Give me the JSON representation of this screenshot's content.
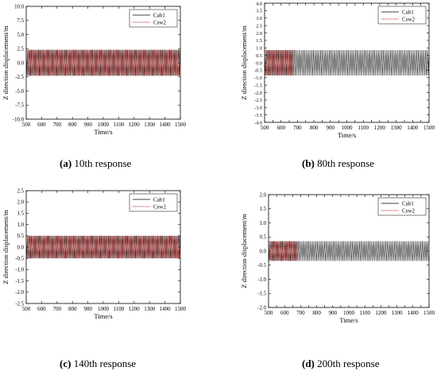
{
  "chart_data": [
    {
      "type": "line",
      "caption_label": "(a)",
      "caption_text": " 10th response",
      "xlabel": "Time/s",
      "ylabel": "Z direction displacement/m",
      "xlim": [
        500,
        1500
      ],
      "ylim": [
        -10.0,
        10.0
      ],
      "xticks": [
        "500",
        "600",
        "700",
        "800",
        "900",
        "1000",
        "1100",
        "1200",
        "1300",
        "1400",
        "1500"
      ],
      "yticks": [
        "10.0",
        "7.5",
        "5.0",
        "2.5",
        "0.0",
        "-2.5",
        "-5.0",
        "-7.5",
        "-10.0"
      ],
      "series": [
        {
          "name": "Cab1",
          "color": "#000000",
          "style": "solid",
          "amplitude": 2.3,
          "x_start": 500,
          "x_end": 1500
        },
        {
          "name": "Csw2",
          "color": "#cc0000",
          "style": "dotted",
          "amplitude": 2.3,
          "x_start": 500,
          "x_end": 1500
        }
      ],
      "legend": "top-right",
      "grid": false
    },
    {
      "type": "line",
      "caption_label": "(b)",
      "caption_text": " 80th response",
      "xlabel": "Time/s",
      "ylabel": "Z direction displacement/m",
      "xlim": [
        500,
        1500
      ],
      "ylim": [
        -4.0,
        4.0
      ],
      "xticks": [
        "500",
        "550",
        "600",
        "650",
        "700",
        "750",
        "800",
        "850",
        "900",
        "950",
        "1000",
        "1050",
        "1100",
        "1150",
        "1200",
        "1250",
        "1300",
        "1350",
        "1400",
        "1450",
        "1500"
      ],
      "yticks": [
        "4.0",
        "3.5",
        "3.0",
        "2.5",
        "2.0",
        "1.5",
        "1.0",
        "0.5",
        "0.0",
        "-0.5",
        "-1.0",
        "-1.5",
        "-2.0",
        "-2.5",
        "-3.0",
        "-3.5",
        "-4.0"
      ],
      "series": [
        {
          "name": "Cab1",
          "color": "#000000",
          "style": "solid",
          "amplitude": 0.85,
          "x_start": 500,
          "x_end": 1500
        },
        {
          "name": "Csw2",
          "color": "#cc0000",
          "style": "dotted",
          "amplitude": 0.85,
          "x_start": 500,
          "x_end": 680
        }
      ],
      "legend": "top-right",
      "grid": false
    },
    {
      "type": "line",
      "caption_label": "(c)",
      "caption_text": " 140th response",
      "xlabel": "Time/s",
      "ylabel": "Z direction displacement/m",
      "xlim": [
        500,
        1500
      ],
      "ylim": [
        -2.5,
        2.5
      ],
      "xticks": [
        "500",
        "600",
        "700",
        "800",
        "900",
        "1000",
        "1100",
        "1200",
        "1300",
        "1400",
        "1500"
      ],
      "yticks": [
        "2.5",
        "2.0",
        "1.5",
        "1.0",
        "0.5",
        "0.0",
        "-0.5",
        "-1.0",
        "-1.5",
        "-2.0",
        "-2.5"
      ],
      "series": [
        {
          "name": "Cab1",
          "color": "#000000",
          "style": "solid",
          "amplitude": 0.5,
          "x_start": 500,
          "x_end": 1500
        },
        {
          "name": "Csw2",
          "color": "#cc0000",
          "style": "dotted",
          "amplitude": 0.5,
          "x_start": 500,
          "x_end": 1500
        }
      ],
      "legend": "top-right",
      "grid": false
    },
    {
      "type": "line",
      "caption_label": "(d)",
      "caption_text": " 200th response",
      "xlabel": "Time/s",
      "ylabel": "Z direction displacement/m",
      "xlim": [
        500,
        1500
      ],
      "ylim": [
        -2.0,
        2.0
      ],
      "xticks": [
        "500",
        "550",
        "600",
        "650",
        "700",
        "750",
        "800",
        "850",
        "900",
        "950",
        "1000",
        "1050",
        "1100",
        "1150",
        "1200",
        "1250",
        "1300",
        "1350",
        "1400",
        "1450",
        "1500"
      ],
      "yticks": [
        "2.0",
        "1.5",
        "1.0",
        "0.5",
        "0.0",
        "-0.5",
        "-1.0",
        "-1.5",
        "-2.0"
      ],
      "series": [
        {
          "name": "Cab1",
          "color": "#000000",
          "style": "solid",
          "amplitude": 0.35,
          "x_start": 500,
          "x_end": 1500
        },
        {
          "name": "Csw2",
          "color": "#cc0000",
          "style": "dotted",
          "amplitude": 0.35,
          "x_start": 500,
          "x_end": 680
        }
      ],
      "legend": "top-right",
      "grid": false
    }
  ]
}
